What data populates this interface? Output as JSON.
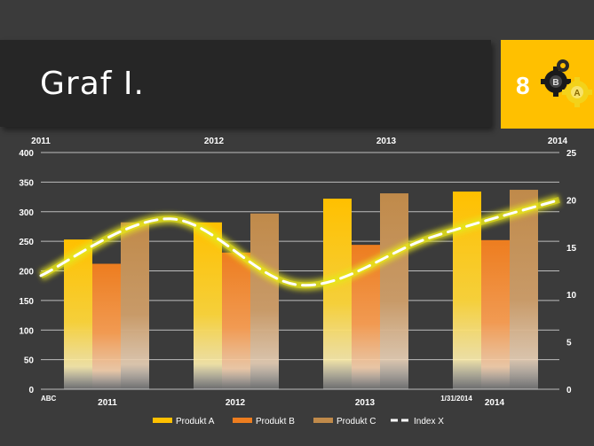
{
  "slide": {
    "title": "Graf I.",
    "badge_number": "8",
    "badge_letters": [
      "B",
      "A"
    ]
  },
  "colors": {
    "produkt_a": "#ffc000",
    "produkt_b": "#ed7d1f",
    "produkt_c": "#c08a4a",
    "index_x": "#ffffff",
    "glow": "#e7e51a",
    "background": "#3b3b3b"
  },
  "chart_data": {
    "type": "bar",
    "title": "",
    "categories": [
      "2011",
      "2012",
      "2013",
      "2014"
    ],
    "top_axis_labels": [
      "2011",
      "2012",
      "2013",
      "2014"
    ],
    "bottom_extra_labels": [
      "ABC",
      "1/31/2014"
    ],
    "series": [
      {
        "name": "Produkt A",
        "type": "bar",
        "values": [
          253,
          282,
          322,
          334
        ]
      },
      {
        "name": "Produkt B",
        "type": "bar",
        "values": [
          212,
          231,
          244,
          252
        ]
      },
      {
        "name": "Produkt C",
        "type": "bar",
        "values": [
          282,
          297,
          331,
          337
        ]
      },
      {
        "name": "Index X",
        "type": "line",
        "axis": "secondary",
        "x": [
          0,
          1,
          2,
          3,
          4
        ],
        "values": [
          12,
          18,
          11,
          16,
          20
        ]
      }
    ],
    "y_left": {
      "min": 0,
      "max": 400,
      "ticks": [
        0,
        50,
        100,
        150,
        200,
        250,
        300,
        350,
        400
      ]
    },
    "y_right": {
      "min": 0,
      "max": 25,
      "ticks": [
        0,
        5,
        10,
        15,
        20,
        25
      ]
    },
    "grid": true,
    "legend_position": "bottom"
  }
}
